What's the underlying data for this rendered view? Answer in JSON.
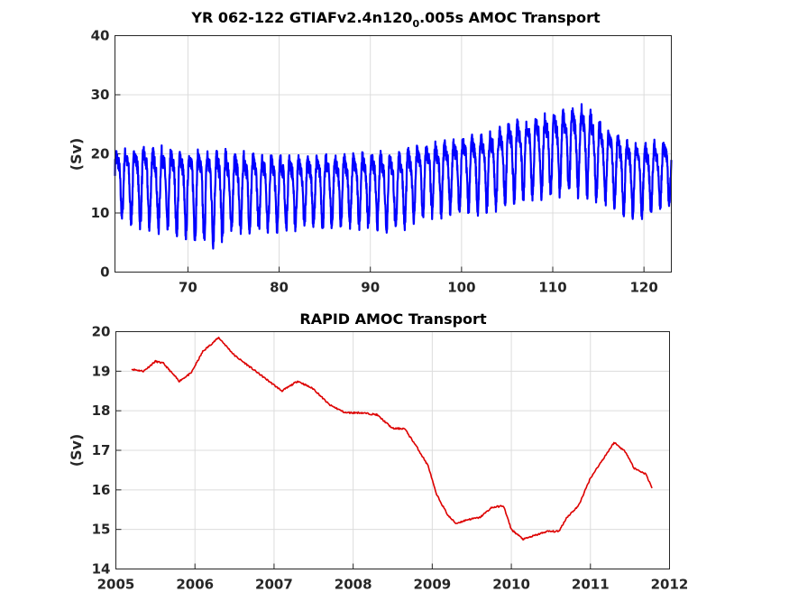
{
  "chart_data": [
    {
      "type": "line",
      "title": "YR 062-122 GTIAFv2.4n120",
      "title_subscript": "0",
      "title_suffix": ".005s AMOC Transport",
      "xlabel": "",
      "ylabel": "(Sv)",
      "xlim": [
        62,
        123
      ],
      "ylim": [
        0,
        40
      ],
      "xticks": [
        70,
        80,
        90,
        100,
        110,
        120
      ],
      "yticks": [
        0,
        10,
        20,
        30,
        40
      ],
      "grid": true,
      "series": [
        {
          "color": "#0000ff",
          "cycle_years": 1,
          "x": [
            62,
            65,
            70,
            73,
            75,
            80,
            85,
            90,
            93,
            95,
            100,
            103,
            105,
            110,
            113.5,
            115,
            118,
            120,
            123
          ],
          "mean": [
            16,
            15.5,
            14.5,
            14,
            14.5,
            14.5,
            14.5,
            15,
            14.5,
            16,
            17.5,
            18,
            19.5,
            21,
            22,
            20,
            17,
            16.5,
            18
          ],
          "amplitude": [
            4.5,
            5.5,
            6,
            6.5,
            5.5,
            5,
            5,
            5,
            5.5,
            5,
            5,
            5.5,
            5.5,
            5.5,
            6,
            5.5,
            5,
            5,
            4.5
          ],
          "max": 30.3,
          "min": 3.6
        }
      ]
    },
    {
      "type": "line",
      "title": "RAPID AMOC Transport",
      "xlabel": "",
      "ylabel": "(Sv)",
      "xlim": [
        2005,
        2012
      ],
      "ylim": [
        14,
        20
      ],
      "xticks": [
        2005,
        2006,
        2007,
        2008,
        2009,
        2010,
        2011,
        2012
      ],
      "yticks": [
        14,
        15,
        16,
        17,
        18,
        19,
        20
      ],
      "grid": true,
      "series": [
        {
          "color": "#dd0000",
          "x": [
            2005.2,
            2005.35,
            2005.5,
            2005.6,
            2005.8,
            2005.95,
            2006.1,
            2006.3,
            2006.5,
            2006.7,
            2006.9,
            2007.1,
            2007.3,
            2007.5,
            2007.7,
            2007.9,
            2008.1,
            2008.3,
            2008.5,
            2008.65,
            2008.8,
            2008.95,
            2009.05,
            2009.2,
            2009.3,
            2009.45,
            2009.6,
            2009.75,
            2009.9,
            2010.0,
            2010.15,
            2010.3,
            2010.45,
            2010.6,
            2010.7,
            2010.85,
            2011.0,
            2011.15,
            2011.3,
            2011.45,
            2011.55,
            2011.7,
            2011.78
          ],
          "y": [
            19.05,
            19.0,
            19.25,
            19.2,
            18.75,
            18.95,
            19.5,
            19.85,
            19.4,
            19.1,
            18.8,
            18.5,
            18.75,
            18.55,
            18.15,
            17.95,
            17.95,
            17.9,
            17.55,
            17.55,
            17.1,
            16.6,
            15.9,
            15.35,
            15.15,
            15.25,
            15.3,
            15.55,
            15.6,
            15.0,
            14.75,
            14.85,
            14.95,
            14.95,
            15.3,
            15.6,
            16.3,
            16.75,
            17.2,
            16.95,
            16.55,
            16.4,
            16.05
          ]
        }
      ]
    }
  ]
}
